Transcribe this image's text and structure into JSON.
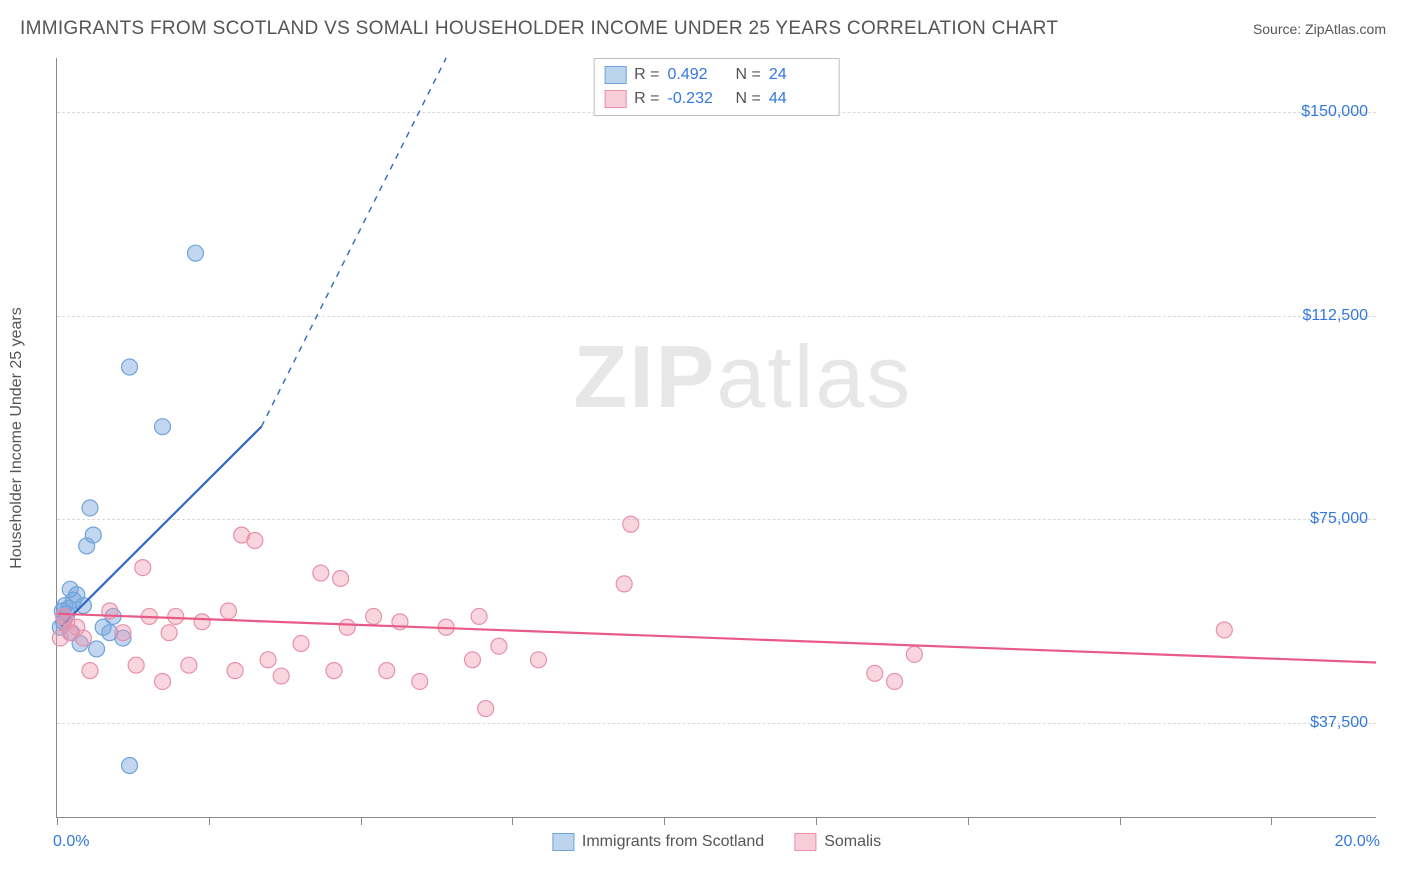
{
  "header": {
    "title": "IMMIGRANTS FROM SCOTLAND VS SOMALI HOUSEHOLDER INCOME UNDER 25 YEARS CORRELATION CHART",
    "source_prefix": "Source: ",
    "source_link": "ZipAtlas.com"
  },
  "watermark": {
    "zip": "ZIP",
    "atlas": "atlas"
  },
  "chart": {
    "type": "scatter-correlation",
    "background_color": "#ffffff",
    "axis_color": "#8a8a8a",
    "grid_color": "#d9d9d9",
    "text_color": "#555555",
    "value_color": "#3377dd",
    "x": {
      "min": 0.0,
      "max": 20.0,
      "label_min": "0.0%",
      "label_max": "20.0%",
      "ticks": [
        0,
        2.3,
        4.6,
        6.9,
        9.2,
        11.5,
        13.8,
        16.1,
        18.4
      ]
    },
    "y": {
      "min": 20000,
      "max": 160000,
      "gridlines": [
        37500,
        75000,
        112500,
        150000
      ],
      "labels": [
        "$37,500",
        "$75,000",
        "$112,500",
        "$150,000"
      ],
      "axis_title": "Householder Income Under 25 years"
    },
    "legend_top": [
      {
        "swatch_fill": "#bcd4ee",
        "swatch_border": "#6fa3db",
        "r_label": "R =",
        "r": "0.492",
        "n_label": "N =",
        "n": "24"
      },
      {
        "swatch_fill": "#f7cdd9",
        "swatch_border": "#e890aa",
        "r_label": "R =",
        "r": "-0.232",
        "n_label": "N =",
        "n": "44"
      }
    ],
    "legend_bottom": [
      {
        "swatch_fill": "#bcd4ee",
        "swatch_border": "#6fa3db",
        "label": "Immigrants from Scotland"
      },
      {
        "swatch_fill": "#f7cdd9",
        "swatch_border": "#e890aa",
        "label": "Somalis"
      }
    ],
    "series": [
      {
        "name": "Immigrants from Scotland",
        "marker_fill": "rgba(120,165,220,0.45)",
        "marker_stroke": "#6fa3db",
        "marker_r": 8,
        "trend": {
          "color": "#2e68c4",
          "width": 2.2,
          "x1": 0.05,
          "y1": 55000,
          "x2": 3.1,
          "y2": 92000,
          "dash_to_x": 5.9,
          "dash_to_y": 160000
        },
        "points": [
          [
            0.05,
            55000
          ],
          [
            0.08,
            58000
          ],
          [
            0.1,
            56000
          ],
          [
            0.12,
            59000
          ],
          [
            0.15,
            57500
          ],
          [
            0.18,
            58500
          ],
          [
            0.2,
            62000
          ],
          [
            0.22,
            54000
          ],
          [
            0.25,
            60000
          ],
          [
            0.3,
            61000
          ],
          [
            0.35,
            52000
          ],
          [
            0.4,
            59000
          ],
          [
            0.45,
            70000
          ],
          [
            0.5,
            77000
          ],
          [
            0.55,
            72000
          ],
          [
            0.6,
            51000
          ],
          [
            0.7,
            55000
          ],
          [
            0.8,
            54000
          ],
          [
            0.85,
            57000
          ],
          [
            1.0,
            53000
          ],
          [
            1.1,
            103000
          ],
          [
            1.1,
            29500
          ],
          [
            1.6,
            92000
          ],
          [
            2.1,
            124000
          ]
        ]
      },
      {
        "name": "Somalis",
        "marker_fill": "rgba(240,150,175,0.40)",
        "marker_stroke": "#e890aa",
        "marker_r": 8,
        "trend": {
          "color": "#e95b87",
          "width": 2.2,
          "x1": 0.0,
          "y1": 57500,
          "x2": 20.0,
          "y2": 48500
        },
        "points": [
          [
            0.05,
            53000
          ],
          [
            0.1,
            57000
          ],
          [
            0.15,
            56000
          ],
          [
            0.2,
            54000
          ],
          [
            0.3,
            55000
          ],
          [
            0.4,
            53000
          ],
          [
            0.5,
            47000
          ],
          [
            0.8,
            58000
          ],
          [
            1.0,
            54000
          ],
          [
            1.2,
            48000
          ],
          [
            1.3,
            66000
          ],
          [
            1.4,
            57000
          ],
          [
            1.6,
            45000
          ],
          [
            1.7,
            54000
          ],
          [
            1.8,
            57000
          ],
          [
            2.0,
            48000
          ],
          [
            2.2,
            56000
          ],
          [
            2.6,
            58000
          ],
          [
            2.7,
            47000
          ],
          [
            2.8,
            72000
          ],
          [
            3.0,
            71000
          ],
          [
            3.2,
            49000
          ],
          [
            3.4,
            46000
          ],
          [
            3.7,
            52000
          ],
          [
            4.0,
            65000
          ],
          [
            4.2,
            47000
          ],
          [
            4.3,
            64000
          ],
          [
            4.4,
            55000
          ],
          [
            4.8,
            57000
          ],
          [
            5.0,
            47000
          ],
          [
            5.2,
            56000
          ],
          [
            5.5,
            45000
          ],
          [
            5.9,
            55000
          ],
          [
            6.3,
            49000
          ],
          [
            6.4,
            57000
          ],
          [
            6.5,
            40000
          ],
          [
            6.7,
            51500
          ],
          [
            7.3,
            49000
          ],
          [
            8.6,
            63000
          ],
          [
            8.7,
            74000
          ],
          [
            12.4,
            46500
          ],
          [
            12.7,
            45000
          ],
          [
            13.0,
            50000
          ],
          [
            17.7,
            54500
          ]
        ]
      }
    ]
  }
}
